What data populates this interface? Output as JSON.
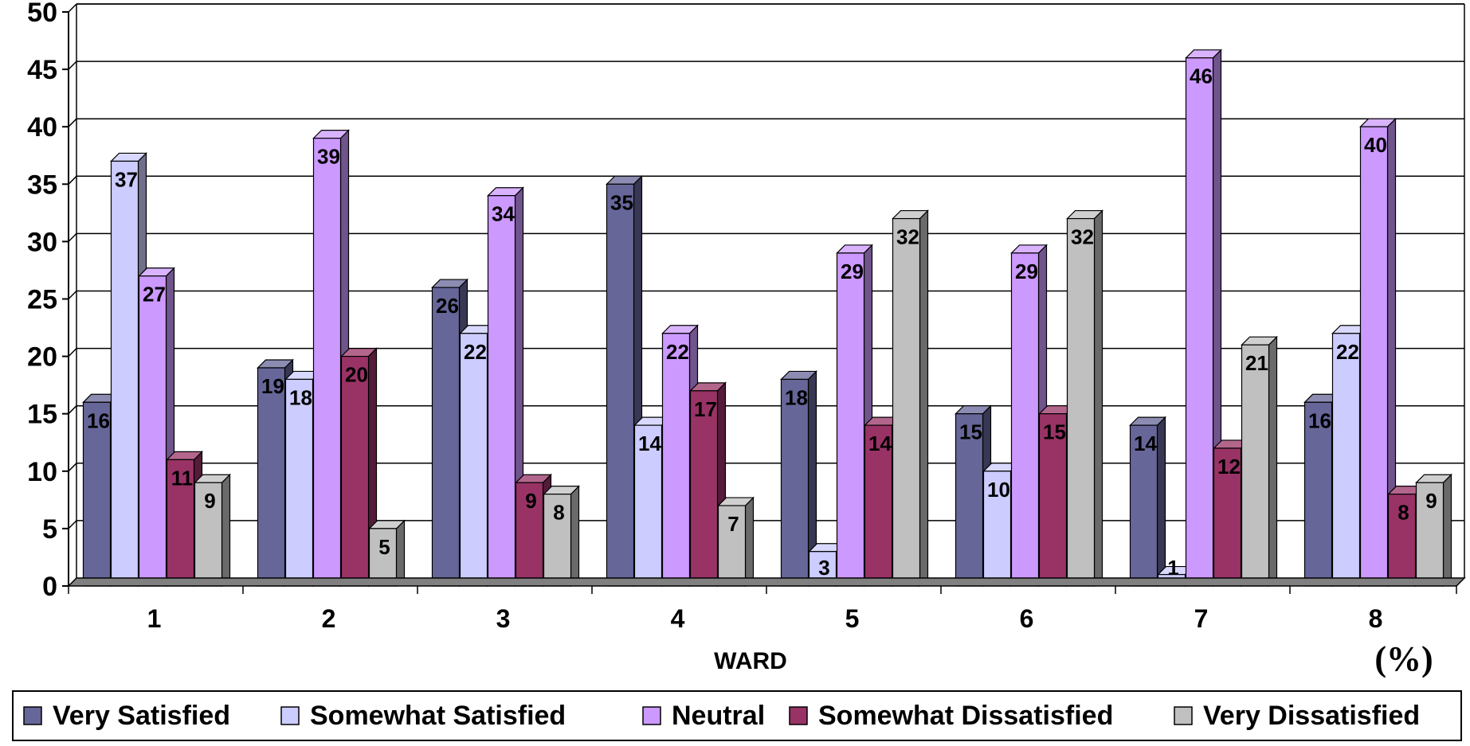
{
  "chart_data": {
    "type": "bar",
    "title": "",
    "xlabel": "WARD",
    "ylabel": "",
    "unit_label": "(%)",
    "categories": [
      "1",
      "2",
      "3",
      "4",
      "5",
      "6",
      "7",
      "8"
    ],
    "ylim": [
      0,
      50
    ],
    "yticks": [
      0,
      5,
      10,
      15,
      20,
      25,
      30,
      35,
      40,
      45,
      50
    ],
    "grid": true,
    "legend_position": "bottom",
    "series": [
      {
        "name": "Very Satisfied",
        "color": "#666699",
        "values": [
          16,
          19,
          26,
          35,
          18,
          15,
          14,
          16
        ]
      },
      {
        "name": "Somewhat Satisfied",
        "color": "#CCCCFF",
        "values": [
          37,
          18,
          22,
          14,
          3,
          10,
          1,
          22
        ]
      },
      {
        "name": "Neutral",
        "color": "#CC99FF",
        "values": [
          27,
          39,
          34,
          22,
          29,
          29,
          46,
          40
        ]
      },
      {
        "name": "Somewhat Dissatisfied",
        "color": "#993366",
        "values": [
          11,
          20,
          9,
          17,
          14,
          15,
          12,
          8
        ]
      },
      {
        "name": "Very Dissatisfied",
        "color": "#C0C0C0",
        "values": [
          9,
          5,
          8,
          7,
          32,
          32,
          21,
          9
        ]
      }
    ]
  }
}
